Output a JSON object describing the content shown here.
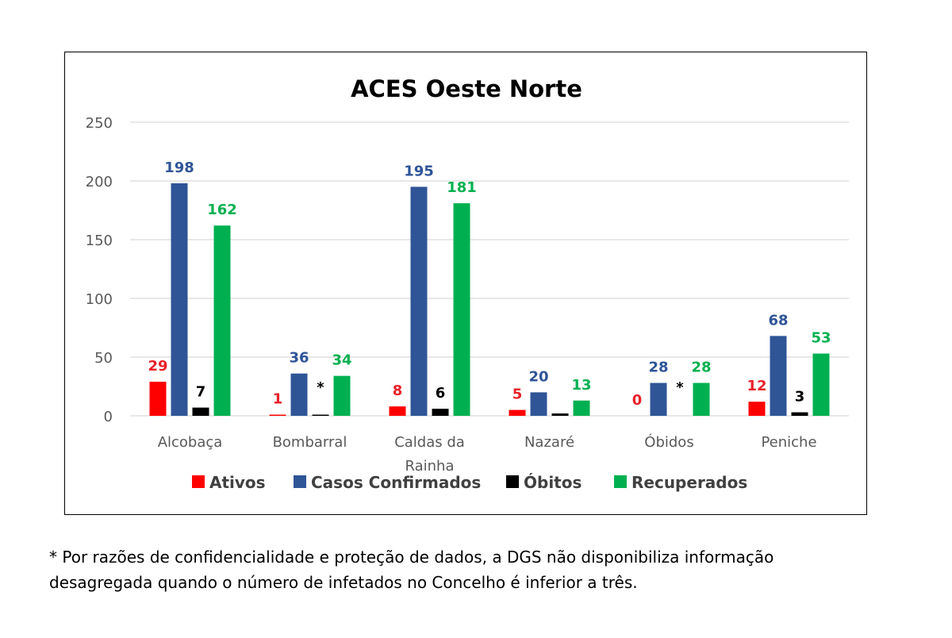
{
  "chart_data": {
    "type": "bar",
    "title": "ACES Oeste Norte",
    "categories": [
      [
        "Alcobaça"
      ],
      [
        "Bombarral"
      ],
      [
        "Caldas da",
        "Rainha"
      ],
      [
        "Nazaré"
      ],
      [
        "Óbidos"
      ],
      [
        "Peniche"
      ]
    ],
    "series": [
      {
        "name": "Ativos",
        "color": "#ff0000",
        "label_color": "#e8202a",
        "values": [
          29,
          1,
          8,
          5,
          0,
          12
        ],
        "labels": [
          "29",
          "1",
          "8",
          "5",
          "0",
          "12"
        ]
      },
      {
        "name": "Casos Confirmados",
        "color": "#2f5597",
        "label_color": "#2f5597",
        "values": [
          198,
          36,
          195,
          20,
          28,
          68
        ],
        "labels": [
          "198",
          "36",
          "195",
          "20",
          "28",
          "68"
        ]
      },
      {
        "name": "Óbitos",
        "color": "#000000",
        "label_color": "#000000",
        "values": [
          7,
          1,
          6,
          2,
          0,
          3
        ],
        "labels": [
          "7",
          "*",
          "6",
          "",
          "*",
          "3"
        ]
      },
      {
        "name": "Recuperados",
        "color": "#00b050",
        "label_color": "#00b050",
        "values": [
          162,
          34,
          181,
          13,
          28,
          53
        ],
        "labels": [
          "162",
          "34",
          "181",
          "13",
          "28",
          "53"
        ]
      }
    ],
    "ylim": [
      0,
      250
    ],
    "yticks": [
      0,
      50,
      100,
      150,
      200,
      250
    ],
    "grid": true,
    "legend": "bottom"
  },
  "footnote": {
    "line1": "* Por razões de confidencialidade e proteção de dados, a DGS não disponibiliza informação",
    "line2": "desagregada quando o número de infetados no Concelho é inferior a três."
  }
}
